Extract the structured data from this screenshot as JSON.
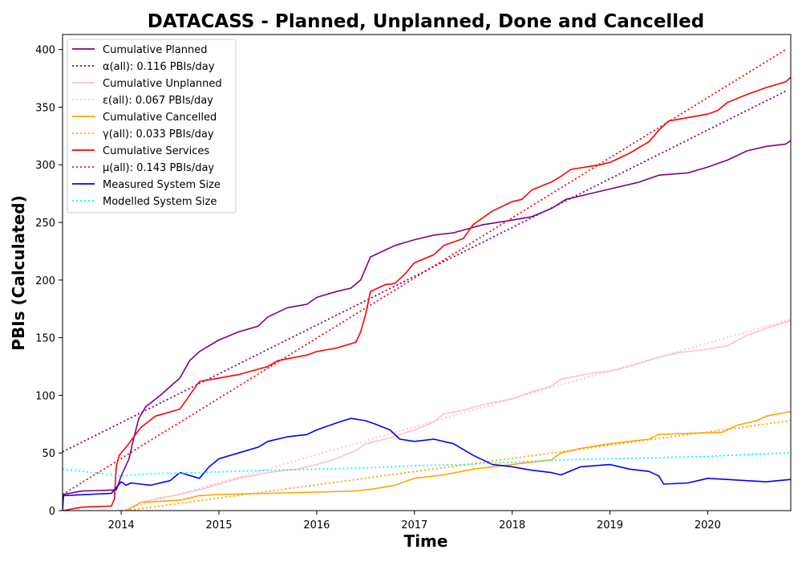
{
  "chart_data": {
    "type": "line",
    "title": "DATACASS - Planned, Unplanned, Done  and Cancelled",
    "xlabel": "Time",
    "ylabel": "PBIs (Calculated)",
    "xlim": [
      2013.4,
      2020.85
    ],
    "ylim": [
      0,
      413
    ],
    "grid": false,
    "legend_position": "top-left",
    "x_ticks": [
      2014,
      2015,
      2016,
      2017,
      2018,
      2019,
      2020
    ],
    "x_tick_labels": [
      "2014",
      "2015",
      "2016",
      "2017",
      "2018",
      "2019",
      "2020"
    ],
    "y_ticks": [
      0,
      50,
      100,
      150,
      200,
      250,
      300,
      350,
      400
    ],
    "y_tick_labels": [
      "0",
      "50",
      "100",
      "150",
      "200",
      "250",
      "300",
      "350",
      "400"
    ],
    "series": [
      {
        "name": "Cumulative Planned",
        "color": "#800080",
        "style": "solid",
        "points": [
          [
            2013.4,
            14
          ],
          [
            2013.6,
            17
          ],
          [
            2013.95,
            18
          ],
          [
            2014.0,
            30
          ],
          [
            2014.08,
            45
          ],
          [
            2014.12,
            60
          ],
          [
            2014.18,
            80
          ],
          [
            2014.25,
            90
          ],
          [
            2014.4,
            100
          ],
          [
            2014.6,
            115
          ],
          [
            2014.7,
            130
          ],
          [
            2014.8,
            138
          ],
          [
            2015.0,
            148
          ],
          [
            2015.2,
            155
          ],
          [
            2015.4,
            160
          ],
          [
            2015.5,
            168
          ],
          [
            2015.7,
            176
          ],
          [
            2015.9,
            179
          ],
          [
            2016.0,
            185
          ],
          [
            2016.2,
            190
          ],
          [
            2016.35,
            193
          ],
          [
            2016.45,
            200
          ],
          [
            2016.55,
            220
          ],
          [
            2016.7,
            226
          ],
          [
            2016.8,
            230
          ],
          [
            2017.0,
            235
          ],
          [
            2017.2,
            239
          ],
          [
            2017.4,
            241
          ],
          [
            2017.7,
            248
          ],
          [
            2018.0,
            252
          ],
          [
            2018.2,
            255
          ],
          [
            2018.4,
            262
          ],
          [
            2018.55,
            270
          ],
          [
            2018.8,
            275
          ],
          [
            2019.0,
            279
          ],
          [
            2019.3,
            285
          ],
          [
            2019.5,
            291
          ],
          [
            2019.8,
            293
          ],
          [
            2020.0,
            298
          ],
          [
            2020.2,
            304
          ],
          [
            2020.4,
            312
          ],
          [
            2020.6,
            316
          ],
          [
            2020.8,
            318
          ],
          [
            2020.85,
            321
          ]
        ]
      },
      {
        "name": "α(all): 0.116 PBIs/day",
        "color": "#800080",
        "style": "dotted",
        "points": [
          [
            2013.4,
            51
          ],
          [
            2020.8,
            364
          ]
        ]
      },
      {
        "name": "Cumulative Unplanned",
        "color": "#FFC0CB",
        "style": "solid",
        "points": [
          [
            2014.05,
            0
          ],
          [
            2014.2,
            7
          ],
          [
            2014.4,
            11
          ],
          [
            2014.6,
            14
          ],
          [
            2014.8,
            18
          ],
          [
            2015.0,
            23
          ],
          [
            2015.2,
            28
          ],
          [
            2015.5,
            33
          ],
          [
            2015.8,
            36
          ],
          [
            2016.0,
            40
          ],
          [
            2016.2,
            45
          ],
          [
            2016.4,
            52
          ],
          [
            2016.5,
            58
          ],
          [
            2016.7,
            62
          ],
          [
            2017.0,
            70
          ],
          [
            2017.2,
            77
          ],
          [
            2017.3,
            84
          ],
          [
            2017.5,
            87
          ],
          [
            2017.7,
            92
          ],
          [
            2018.0,
            97
          ],
          [
            2018.2,
            103
          ],
          [
            2018.4,
            108
          ],
          [
            2018.5,
            114
          ],
          [
            2018.8,
            119
          ],
          [
            2019.0,
            121
          ],
          [
            2019.2,
            125
          ],
          [
            2019.5,
            133
          ],
          [
            2019.7,
            137
          ],
          [
            2020.0,
            140
          ],
          [
            2020.2,
            143
          ],
          [
            2020.4,
            152
          ],
          [
            2020.6,
            158
          ],
          [
            2020.85,
            165
          ]
        ]
      },
      {
        "name": "ε(all): 0.067 PBIs/day",
        "color": "#FFC0CB",
        "style": "dotted",
        "points": [
          [
            2014.0,
            0
          ],
          [
            2020.85,
            166
          ]
        ]
      },
      {
        "name": "Cumulative Cancelled",
        "color": "#FFA500",
        "style": "solid",
        "points": [
          [
            2014.05,
            0
          ],
          [
            2014.2,
            7
          ],
          [
            2014.6,
            9
          ],
          [
            2014.8,
            13
          ],
          [
            2015.0,
            14
          ],
          [
            2015.5,
            15
          ],
          [
            2016.0,
            16
          ],
          [
            2016.4,
            17
          ],
          [
            2016.6,
            19
          ],
          [
            2016.8,
            22
          ],
          [
            2017.0,
            28
          ],
          [
            2017.3,
            31
          ],
          [
            2017.6,
            36
          ],
          [
            2017.8,
            38
          ],
          [
            2018.0,
            40
          ],
          [
            2018.2,
            42
          ],
          [
            2018.4,
            44
          ],
          [
            2018.5,
            50
          ],
          [
            2018.7,
            54
          ],
          [
            2019.0,
            58
          ],
          [
            2019.2,
            60
          ],
          [
            2019.4,
            62
          ],
          [
            2019.5,
            66
          ],
          [
            2019.8,
            67
          ],
          [
            2020.15,
            68
          ],
          [
            2020.3,
            74
          ],
          [
            2020.5,
            78
          ],
          [
            2020.6,
            82
          ],
          [
            2020.85,
            86
          ]
        ]
      },
      {
        "name": "γ(all): 0.033 PBIs/day",
        "color": "#FFA500",
        "style": "dotted",
        "points": [
          [
            2014.05,
            0
          ],
          [
            2020.85,
            78
          ]
        ]
      },
      {
        "name": "Cumulative Services",
        "color": "#FF0000",
        "style": "solid",
        "points": [
          [
            2013.4,
            0
          ],
          [
            2013.6,
            3
          ],
          [
            2013.9,
            4
          ],
          [
            2013.93,
            10
          ],
          [
            2013.95,
            38
          ],
          [
            2013.98,
            48
          ],
          [
            2014.05,
            55
          ],
          [
            2014.2,
            72
          ],
          [
            2014.35,
            82
          ],
          [
            2014.6,
            88
          ],
          [
            2014.7,
            100
          ],
          [
            2014.8,
            112
          ],
          [
            2015.0,
            115
          ],
          [
            2015.2,
            118
          ],
          [
            2015.5,
            125
          ],
          [
            2015.6,
            130
          ],
          [
            2015.9,
            135
          ],
          [
            2016.0,
            138
          ],
          [
            2016.2,
            141
          ],
          [
            2016.4,
            146
          ],
          [
            2016.45,
            155
          ],
          [
            2016.5,
            170
          ],
          [
            2016.55,
            190
          ],
          [
            2016.7,
            196
          ],
          [
            2016.8,
            197
          ],
          [
            2016.9,
            205
          ],
          [
            2017.0,
            215
          ],
          [
            2017.2,
            222
          ],
          [
            2017.3,
            230
          ],
          [
            2017.5,
            236
          ],
          [
            2017.6,
            248
          ],
          [
            2017.8,
            260
          ],
          [
            2018.0,
            268
          ],
          [
            2018.1,
            270
          ],
          [
            2018.2,
            278
          ],
          [
            2018.4,
            285
          ],
          [
            2018.5,
            290
          ],
          [
            2018.6,
            296
          ],
          [
            2018.9,
            300
          ],
          [
            2019.0,
            302
          ],
          [
            2019.2,
            310
          ],
          [
            2019.4,
            320
          ],
          [
            2019.5,
            330
          ],
          [
            2019.6,
            338
          ],
          [
            2019.8,
            341
          ],
          [
            2020.0,
            344
          ],
          [
            2020.1,
            347
          ],
          [
            2020.2,
            354
          ],
          [
            2020.4,
            361
          ],
          [
            2020.6,
            367
          ],
          [
            2020.8,
            372
          ],
          [
            2020.85,
            376
          ]
        ]
      },
      {
        "name": "μ(all): 0.143 PBIs/day",
        "color": "#FF0000",
        "style": "dotted",
        "points": [
          [
            2013.4,
            14
          ],
          [
            2020.8,
            400
          ]
        ]
      },
      {
        "name": "Measured System Size",
        "color": "#0000FF",
        "style": "solid",
        "points": [
          [
            2013.4,
            0
          ],
          [
            2013.41,
            13
          ],
          [
            2013.9,
            15
          ],
          [
            2013.95,
            20
          ],
          [
            2014.0,
            25
          ],
          [
            2014.05,
            22
          ],
          [
            2014.1,
            24
          ],
          [
            2014.2,
            23
          ],
          [
            2014.3,
            22
          ],
          [
            2014.5,
            26
          ],
          [
            2014.6,
            33
          ],
          [
            2014.8,
            28
          ],
          [
            2014.9,
            38
          ],
          [
            2015.0,
            45
          ],
          [
            2015.2,
            50
          ],
          [
            2015.4,
            55
          ],
          [
            2015.5,
            60
          ],
          [
            2015.7,
            64
          ],
          [
            2015.9,
            66
          ],
          [
            2016.0,
            70
          ],
          [
            2016.2,
            76
          ],
          [
            2016.35,
            80
          ],
          [
            2016.5,
            78
          ],
          [
            2016.6,
            75
          ],
          [
            2016.75,
            70
          ],
          [
            2016.85,
            62
          ],
          [
            2017.0,
            60
          ],
          [
            2017.2,
            62
          ],
          [
            2017.4,
            58
          ],
          [
            2017.6,
            48
          ],
          [
            2017.7,
            44
          ],
          [
            2017.8,
            40
          ],
          [
            2018.0,
            38
          ],
          [
            2018.2,
            35
          ],
          [
            2018.4,
            33
          ],
          [
            2018.5,
            31
          ],
          [
            2018.7,
            38
          ],
          [
            2019.0,
            40
          ],
          [
            2019.2,
            36
          ],
          [
            2019.4,
            34
          ],
          [
            2019.5,
            30
          ],
          [
            2019.55,
            23
          ],
          [
            2019.8,
            24
          ],
          [
            2020.0,
            28
          ],
          [
            2020.2,
            27
          ],
          [
            2020.4,
            26
          ],
          [
            2020.6,
            25
          ],
          [
            2020.85,
            27
          ]
        ]
      },
      {
        "name": "Modelled System Size",
        "color": "#00FFFF",
        "style": "dotted",
        "points": [
          [
            2013.4,
            36
          ],
          [
            2013.7,
            33
          ],
          [
            2014.0,
            30
          ],
          [
            2014.3,
            32
          ],
          [
            2014.8,
            33
          ],
          [
            2015.5,
            35
          ],
          [
            2016.0,
            36
          ],
          [
            2016.5,
            37
          ],
          [
            2017.0,
            39
          ],
          [
            2017.5,
            40
          ],
          [
            2018.0,
            42
          ],
          [
            2018.5,
            44
          ],
          [
            2019.0,
            45
          ],
          [
            2019.5,
            46
          ],
          [
            2020.0,
            47
          ],
          [
            2020.5,
            49
          ],
          [
            2020.85,
            50
          ]
        ]
      }
    ]
  }
}
